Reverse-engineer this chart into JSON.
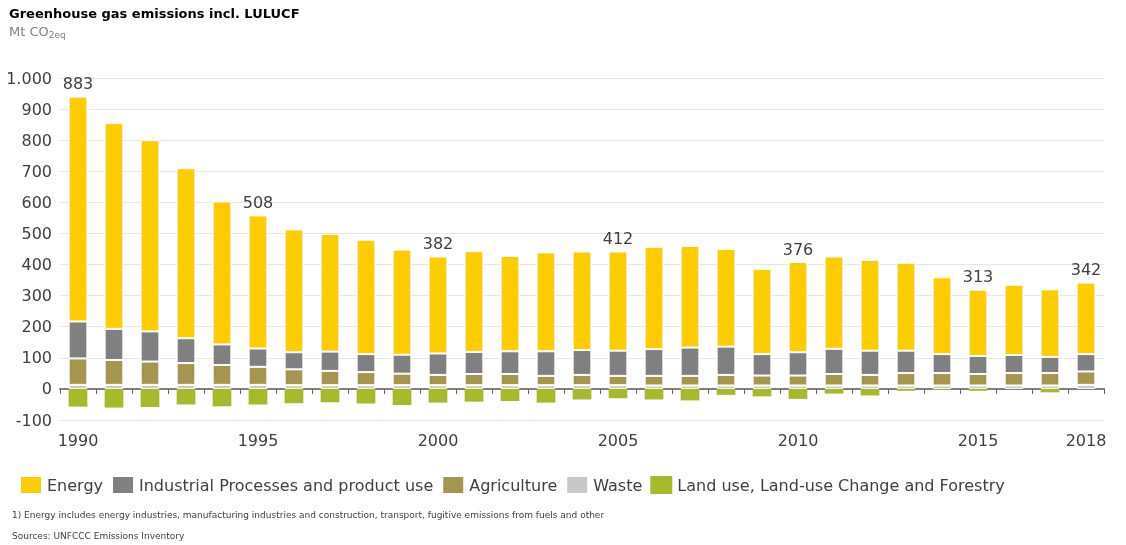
{
  "chart_data": {
    "type": "bar",
    "stacked": true,
    "title": "Greenhouse gas emissions incl. LULUCF",
    "subtitle": "Mt CO$_{2eq}$",
    "categories": [
      "1990",
      null,
      null,
      null,
      null,
      "1995",
      null,
      null,
      null,
      null,
      "2000",
      null,
      null,
      null,
      null,
      "2005",
      null,
      null,
      null,
      null,
      "2010",
      null,
      null,
      null,
      null,
      "2015",
      null,
      null,
      "2018"
    ],
    "series": [
      {
        "name": "Waste",
        "color": "#c8c8c8",
        "values": [
          13,
          13,
          13,
          13,
          13,
          13,
          12,
          12,
          12,
          12,
          12,
          12,
          12,
          12,
          12,
          12,
          11,
          11,
          11,
          11,
          11,
          11,
          11,
          11,
          11,
          11,
          11,
          11,
          13
        ]
      },
      {
        "name": "Agriculture",
        "color": "#a6954f",
        "values": [
          85,
          80,
          75,
          70,
          64,
          58,
          51,
          46,
          42,
          37,
          33,
          36,
          36,
          30,
          33,
          30,
          31,
          31,
          34,
          32,
          32,
          37,
          34,
          40,
          40,
          37,
          40,
          40,
          43
        ]
      },
      {
        "name": "Industrial Processes and product use",
        "color": "#808080",
        "values": [
          119,
          100,
          97,
          80,
          66,
          59,
          55,
          62,
          58,
          61,
          69,
          71,
          73,
          79,
          80,
          81,
          86,
          91,
          91,
          69,
          75,
          81,
          78,
          72,
          61,
          58,
          58,
          52,
          56
        ]
      },
      {
        "name": "Energy",
        "color": "#ffcc00",
        "values": [
          723,
          662,
          615,
          547,
          460,
          428,
          395,
          378,
          368,
          338,
          312,
          324,
          307,
          318,
          317,
          319,
          329,
          327,
          314,
          274,
          290,
          297,
          292,
          283,
          247,
          213,
          226,
          217,
          230
        ]
      },
      {
        "name": "Land use, Land-use Change and Forestry",
        "color": "#a5b92b",
        "values": [
          -57,
          -60,
          -58,
          -50,
          -56,
          -50,
          -46,
          -43,
          -47,
          -52,
          -44,
          -41,
          -39,
          -44,
          -34,
          -30,
          -34,
          -37,
          -19,
          -24,
          -32,
          -15,
          -21,
          -6,
          -3,
          -6,
          null,
          -11,
          null
        ]
      }
    ],
    "totals": [
      "883",
      null,
      null,
      null,
      null,
      "508",
      null,
      null,
      null,
      null,
      "382",
      null,
      null,
      null,
      null,
      "412",
      null,
      null,
      null,
      null,
      "376",
      null,
      null,
      null,
      null,
      "313",
      null,
      null,
      "342"
    ],
    "ylim": [
      -100,
      1000
    ],
    "yticks": [
      -100,
      0,
      100,
      200,
      300,
      400,
      500,
      600,
      700,
      800,
      900,
      {
        "value": 1000,
        "label": "1.000"
      }
    ],
    "grid": "y",
    "legend": "bottom",
    "annotations": [
      "1) Energy includes energy industries, manufacturing industries and construction, transport, fugitive emissions from fuels and other",
      "Sources: UNFCCC Emissions Inventory"
    ]
  }
}
